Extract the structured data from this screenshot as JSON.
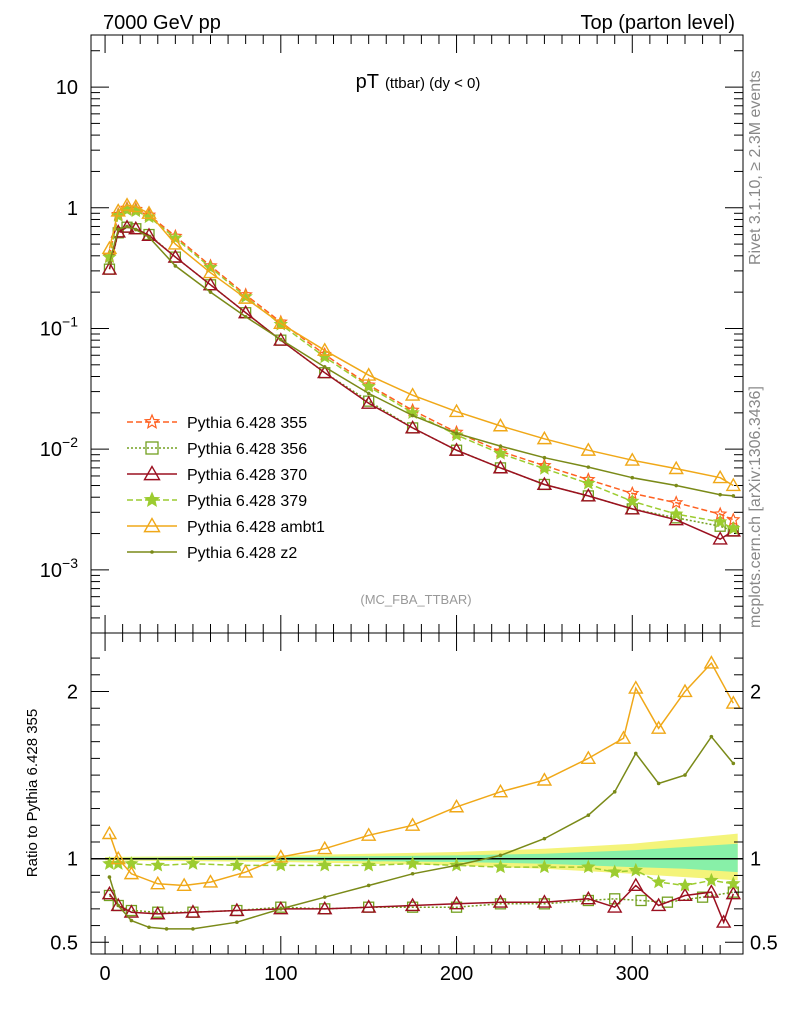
{
  "header": {
    "left": "7000 GeV pp",
    "right": "Top (parton level)"
  },
  "side_text": {
    "rivet": "Rivet 3.1.10, ≥ 2.3M events",
    "mcplots": "mcplots.cern.ch [arXiv:1306.3436]"
  },
  "chart_data": [
    {
      "type": "line",
      "title": "pT (ttbar) (dy < 0)",
      "title_main": "pT",
      "title_sub": "(ttbar) (dy < 0)",
      "analysis_label": "(MC_FBA_TTBAR)",
      "xlabel": "",
      "ylabel": "",
      "log_y": true,
      "xlim": [
        -8,
        363
      ],
      "ylim": [
        0.0003,
        27
      ],
      "y_tick_labels": [
        {
          "value": 10,
          "label": "10"
        },
        {
          "value": 1,
          "label": "1"
        },
        {
          "value": 0.1,
          "label": "10",
          "exp": "−1"
        },
        {
          "value": 0.01,
          "label": "10",
          "exp": "−2"
        },
        {
          "value": 0.001,
          "label": "10",
          "exp": "−3"
        }
      ],
      "grid": false,
      "legend_position": "lower-left",
      "series": [
        {
          "name": "Pythia 6.428 355",
          "color": "#ff6020",
          "marker": "star-open",
          "dash": "6,3",
          "x": [
            2.5,
            7.5,
            12.5,
            17.5,
            25,
            40,
            60,
            80,
            100,
            125,
            150,
            175,
            200,
            225,
            250,
            275,
            300,
            325,
            350,
            357.5
          ],
          "values": [
            0.4,
            0.88,
            0.99,
            0.97,
            0.87,
            0.58,
            0.33,
            0.19,
            0.113,
            0.061,
            0.034,
            0.021,
            0.0138,
            0.0096,
            0.0073,
            0.0056,
            0.0043,
            0.0036,
            0.0029,
            0.0026
          ]
        },
        {
          "name": "Pythia 6.428 356",
          "color": "#73a020",
          "marker": "square-open",
          "dash": "2,2",
          "x": [
            2.5,
            7.5,
            12.5,
            17.5,
            25,
            40,
            60,
            80,
            100,
            125,
            150,
            175,
            200,
            225,
            250,
            275,
            300,
            325,
            350,
            357.5
          ],
          "values": [
            0.31,
            0.62,
            0.69,
            0.67,
            0.6,
            0.39,
            0.23,
            0.135,
            0.08,
            0.043,
            0.025,
            0.015,
            0.0098,
            0.007,
            0.0051,
            0.0041,
            0.0032,
            0.0027,
            0.0023,
            0.0021
          ]
        },
        {
          "name": "Pythia 6.428 370",
          "color": "#9b1020",
          "marker": "triangle-open",
          "dash": "",
          "x": [
            2.5,
            7.5,
            12.5,
            17.5,
            25,
            40,
            60,
            80,
            100,
            125,
            150,
            175,
            200,
            225,
            250,
            275,
            300,
            325,
            350,
            357.5
          ],
          "values": [
            0.31,
            0.63,
            0.69,
            0.67,
            0.59,
            0.39,
            0.23,
            0.135,
            0.08,
            0.043,
            0.024,
            0.015,
            0.0098,
            0.007,
            0.0051,
            0.0041,
            0.0032,
            0.0026,
            0.0018,
            0.0021
          ]
        },
        {
          "name": "Pythia 6.428 379",
          "color": "#9ccc30",
          "marker": "star-filled",
          "dash": "6,3",
          "x": [
            2.5,
            7.5,
            12.5,
            17.5,
            25,
            40,
            60,
            80,
            100,
            125,
            150,
            175,
            200,
            225,
            250,
            275,
            300,
            325,
            350,
            357.5
          ],
          "values": [
            0.39,
            0.86,
            0.96,
            0.94,
            0.84,
            0.56,
            0.32,
            0.183,
            0.108,
            0.058,
            0.033,
            0.02,
            0.0131,
            0.0092,
            0.0069,
            0.0052,
            0.0037,
            0.0029,
            0.0025,
            0.0022
          ]
        },
        {
          "name": "Pythia 6.428 ambt1",
          "color": "#f0a818",
          "marker": "triangle-open",
          "dash": "",
          "x": [
            2.5,
            7.5,
            12.5,
            17.5,
            25,
            40,
            60,
            80,
            100,
            125,
            150,
            175,
            200,
            225,
            250,
            275,
            300,
            325,
            350,
            357.5
          ],
          "values": [
            0.46,
            0.94,
            1.05,
            1.02,
            0.9,
            0.5,
            0.29,
            0.178,
            0.11,
            0.066,
            0.041,
            0.028,
            0.0205,
            0.0156,
            0.0122,
            0.0098,
            0.0081,
            0.0069,
            0.0058,
            0.005
          ]
        },
        {
          "name": "Pythia 6.428 z2",
          "color": "#7a8a18",
          "marker": "dot",
          "dash": "",
          "x": [
            2.5,
            7.5,
            12.5,
            17.5,
            25,
            40,
            60,
            80,
            100,
            125,
            150,
            175,
            200,
            225,
            250,
            275,
            300,
            325,
            350,
            357.5
          ],
          "values": [
            0.35,
            0.66,
            0.7,
            0.66,
            0.57,
            0.33,
            0.2,
            0.125,
            0.081,
            0.048,
            0.029,
            0.019,
            0.0135,
            0.0106,
            0.0085,
            0.0071,
            0.0058,
            0.005,
            0.0042,
            0.0041
          ]
        }
      ]
    },
    {
      "type": "line",
      "title": "",
      "xlabel": "",
      "ylabel": "Ratio to Pythia 6.428 355",
      "log_y": false,
      "xlim": [
        -8,
        363
      ],
      "ylim": [
        0.43,
        2.35
      ],
      "reference_line": 1,
      "x_tick_labels": [
        0,
        100,
        200,
        300
      ],
      "y_tick_labels": [
        {
          "value": 0.5,
          "label": "0.5"
        },
        {
          "value": 1,
          "label": "1"
        },
        {
          "value": 2,
          "label": "2"
        }
      ],
      "grid": false,
      "uncertainty_bands": [
        {
          "color": "#f4f47a",
          "x": [
            0,
            100,
            200,
            250,
            300,
            330,
            360
          ],
          "low": [
            0.99,
            0.98,
            0.96,
            0.94,
            0.91,
            0.89,
            0.87
          ],
          "high": [
            1.01,
            1.02,
            1.04,
            1.06,
            1.09,
            1.12,
            1.15
          ]
        },
        {
          "color": "#88f0a8",
          "x": [
            0,
            100,
            200,
            250,
            300,
            330,
            360
          ],
          "low": [
            0.995,
            0.99,
            0.98,
            0.97,
            0.95,
            0.94,
            0.92
          ],
          "high": [
            1.005,
            1.01,
            1.02,
            1.03,
            1.05,
            1.07,
            1.09
          ]
        }
      ],
      "series": [
        {
          "name": "Pythia 6.428 356",
          "color": "#73a020",
          "marker": "square-open",
          "dash": "2,2",
          "x": [
            2.5,
            7.5,
            15,
            30,
            50,
            75,
            100,
            125,
            150,
            175,
            200,
            225,
            250,
            275,
            290,
            305,
            320,
            340,
            357.5
          ],
          "values": [
            0.78,
            0.72,
            0.69,
            0.68,
            0.68,
            0.69,
            0.71,
            0.7,
            0.71,
            0.71,
            0.71,
            0.73,
            0.73,
            0.75,
            0.76,
            0.75,
            0.74,
            0.77,
            0.8
          ]
        },
        {
          "name": "Pythia 6.428 370",
          "color": "#9b1020",
          "marker": "triangle-open",
          "dash": "",
          "x": [
            2.5,
            7.5,
            15,
            30,
            50,
            75,
            100,
            125,
            150,
            175,
            200,
            225,
            250,
            275,
            290,
            302,
            315,
            330,
            345,
            352,
            357.5
          ],
          "values": [
            0.79,
            0.72,
            0.68,
            0.67,
            0.68,
            0.69,
            0.7,
            0.7,
            0.71,
            0.72,
            0.73,
            0.74,
            0.74,
            0.76,
            0.71,
            0.84,
            0.72,
            0.78,
            0.8,
            0.62,
            0.79
          ]
        },
        {
          "name": "Pythia 6.428 379",
          "color": "#9ccc30",
          "marker": "star-filled",
          "dash": "6,3",
          "x": [
            2.5,
            7.5,
            15,
            30,
            50,
            75,
            100,
            125,
            150,
            175,
            200,
            225,
            250,
            275,
            290,
            302,
            315,
            330,
            345,
            357.5
          ],
          "values": [
            0.97,
            0.97,
            0.97,
            0.96,
            0.97,
            0.96,
            0.96,
            0.96,
            0.96,
            0.97,
            0.96,
            0.95,
            0.95,
            0.95,
            0.92,
            0.93,
            0.86,
            0.84,
            0.87,
            0.85
          ]
        },
        {
          "name": "Pythia 6.428 ambt1",
          "color": "#f0a818",
          "marker": "triangle-open",
          "dash": "",
          "x": [
            2.5,
            7.5,
            15,
            30,
            45,
            60,
            80,
            100,
            125,
            150,
            175,
            200,
            225,
            250,
            275,
            295,
            302,
            315,
            330,
            345,
            357.5
          ],
          "values": [
            1.15,
            1.0,
            0.91,
            0.85,
            0.84,
            0.86,
            0.92,
            1.01,
            1.06,
            1.14,
            1.2,
            1.31,
            1.4,
            1.47,
            1.6,
            1.72,
            2.02,
            1.78,
            2.0,
            2.17,
            1.93
          ]
        },
        {
          "name": "Pythia 6.428 z2",
          "color": "#7a8a18",
          "marker": "dot",
          "dash": "",
          "x": [
            2.5,
            7.5,
            15,
            25,
            35,
            50,
            75,
            100,
            125,
            150,
            175,
            200,
            225,
            250,
            275,
            290,
            302,
            315,
            330,
            345,
            357.5
          ],
          "values": [
            0.89,
            0.72,
            0.63,
            0.59,
            0.58,
            0.58,
            0.62,
            0.7,
            0.77,
            0.84,
            0.91,
            0.96,
            1.02,
            1.12,
            1.26,
            1.4,
            1.63,
            1.45,
            1.5,
            1.73,
            1.57
          ]
        }
      ]
    }
  ]
}
